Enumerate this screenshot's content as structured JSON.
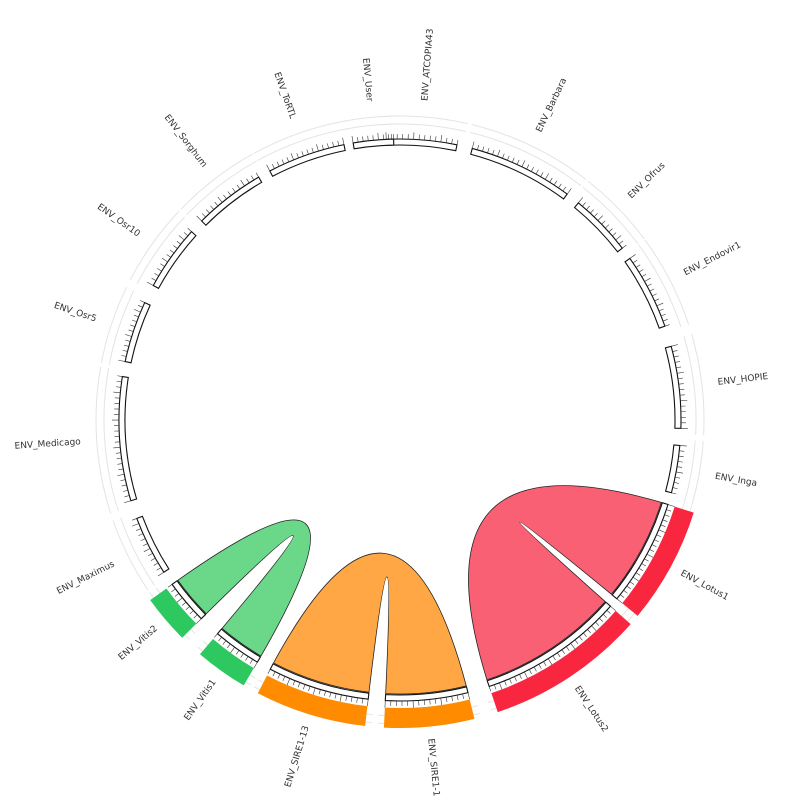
{
  "chart_data": {
    "type": "chord",
    "segments": [
      {
        "name": "ENV_ATCOPIA43",
        "start": -92.8,
        "end": -78.3
      },
      {
        "name": "ENV_Barbara",
        "start": -75.1,
        "end": -53.5
      },
      {
        "name": "ENV_Ofrus",
        "start": -50.6,
        "end": -37.7
      },
      {
        "name": "ENV_Endovir1",
        "start": -35.1,
        "end": -19.5
      },
      {
        "name": "ENV_HOPIE",
        "start": -15.2,
        "end": 1.7
      },
      {
        "name": "ENV_Inga",
        "start": 5.2,
        "end": 15.0
      },
      {
        "name": "ENV_Lotus1",
        "start": 17.5,
        "end": 39.5
      },
      {
        "name": "ENV_Lotus2",
        "start": 41.5,
        "end": 71.5
      },
      {
        "name": "ENV_SIRE1-1",
        "start": 76.0,
        "end": 93.0
      },
      {
        "name": "ENV_SIRE1-13",
        "start": 96.5,
        "end": 117.5
      },
      {
        "name": "ENV_Vitis1",
        "start": 120.5,
        "end": 130.5
      },
      {
        "name": "ENV_Vitis2",
        "start": 135.0,
        "end": 144.2
      },
      {
        "name": "ENV_Maximus",
        "start": 147.2,
        "end": 159.5
      },
      {
        "name": "ENV_Medicago",
        "start": 163.3,
        "end": 188.9
      },
      {
        "name": "ENV_Osr5",
        "start": 192.0,
        "end": 204.7
      },
      {
        "name": "ENV_Osr10",
        "start": 208.6,
        "end": 222.1
      },
      {
        "name": "ENV_Sorghum",
        "start": 225.1,
        "end": 239.8
      },
      {
        "name": "ENV_ToRTL",
        "start": 242.4,
        "end": 258.5
      },
      {
        "name": "ENV_User",
        "start": 260.4,
        "end": 268.7
      }
    ],
    "links": [
      {
        "source": "ENV_Lotus1",
        "target": "ENV_Lotus2",
        "source_range": [
          17.5,
          39.5
        ],
        "target_range": [
          41.5,
          71.5
        ],
        "color": "#F9576D"
      },
      {
        "source": "ENV_SIRE1-1",
        "target": "ENV_SIRE1-13",
        "source_range": [
          76.0,
          93.0
        ],
        "target_range": [
          96.5,
          117.5
        ],
        "color": "#FFA23A"
      },
      {
        "source": "ENV_Vitis1",
        "target": "ENV_Vitis2",
        "source_range": [
          120.5,
          130.5
        ],
        "target_range": [
          135.0,
          144.2
        ],
        "color": "#63D683"
      }
    ],
    "highlight_colors": {
      "ENV_Lotus1": "#F8273F",
      "ENV_Lotus2": "#F8273F",
      "ENV_SIRE1-1": "#FF8C00",
      "ENV_SIRE1-13": "#FF8C00",
      "ENV_Vitis1": "#2DC860",
      "ENV_Vitis2": "#2DC860"
    }
  }
}
